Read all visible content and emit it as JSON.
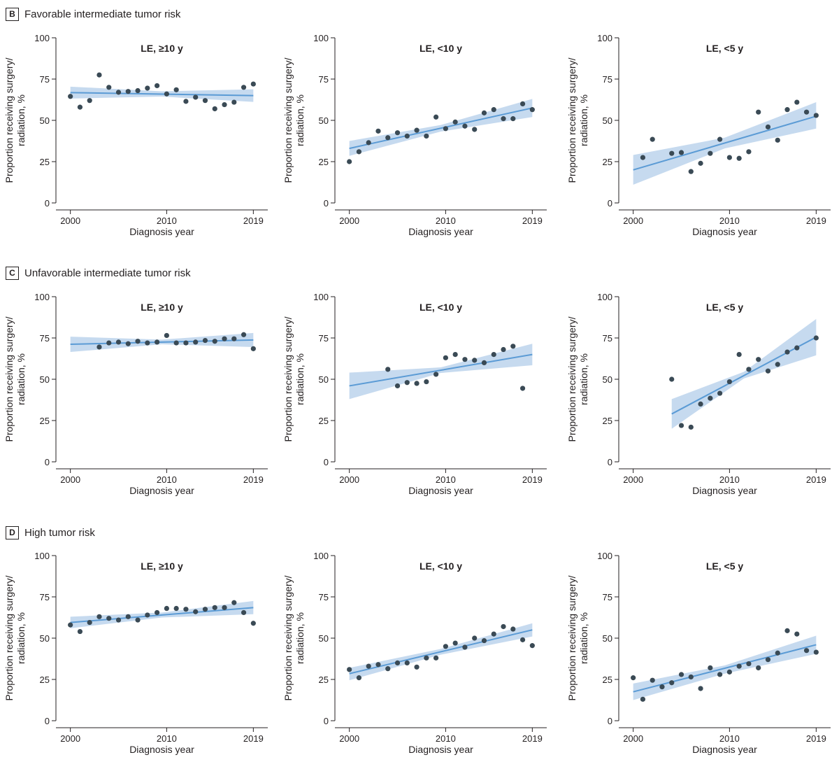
{
  "sections": [
    {
      "letter": "B",
      "title": "Favorable intermediate tumor risk"
    },
    {
      "letter": "C",
      "title": "Unfavorable intermediate tumor risk"
    },
    {
      "letter": "D",
      "title": "High tumor risk"
    }
  ],
  "colors": {
    "line": "#5b9bd5",
    "ci_band": "#bcd4ec",
    "point": "#3a4a55",
    "axis": "#231f20"
  },
  "chart_data": [
    {
      "type": "scatter",
      "section": "B",
      "title": "LE, ≥10 y",
      "xlabel": "Diagnosis year",
      "ylabel": "Proportion receiving surgery/ radiation, %",
      "xlim": [
        1998.5,
        2020.5
      ],
      "ylim": [
        0,
        100
      ],
      "x_ticks": [
        2000,
        2010,
        2019
      ],
      "y_ticks": [
        0,
        25,
        50,
        75,
        100
      ],
      "points": [
        [
          2000,
          64.5
        ],
        [
          2001,
          58
        ],
        [
          2002,
          62
        ],
        [
          2003,
          77.5
        ],
        [
          2004,
          70
        ],
        [
          2005,
          67
        ],
        [
          2006,
          67.5
        ],
        [
          2007,
          68
        ],
        [
          2008,
          69.5
        ],
        [
          2009,
          71
        ],
        [
          2010,
          66
        ],
        [
          2011,
          68.5
        ],
        [
          2012,
          61.5
        ],
        [
          2013,
          64
        ],
        [
          2014,
          62
        ],
        [
          2015,
          57
        ],
        [
          2016,
          59.5
        ],
        [
          2017,
          61
        ],
        [
          2018,
          70
        ],
        [
          2019,
          72
        ]
      ],
      "fit": {
        "x": [
          2000,
          2019
        ],
        "y": [
          66.8,
          65.0
        ]
      },
      "ci": {
        "x": [
          2000,
          2009.5,
          2019
        ],
        "upper": [
          70.4,
          67.6,
          68.8
        ],
        "lower": [
          63.2,
          64.4,
          61.2
        ]
      }
    },
    {
      "type": "scatter",
      "section": "B",
      "title": "LE, <10 y",
      "xlabel": "Diagnosis year",
      "ylabel": "Proportion receiving surgery/ radiation, %",
      "xlim": [
        1998.5,
        2020.5
      ],
      "ylim": [
        0,
        100
      ],
      "x_ticks": [
        2000,
        2010,
        2019
      ],
      "y_ticks": [
        0,
        25,
        50,
        75,
        100
      ],
      "points": [
        [
          2000,
          25
        ],
        [
          2001,
          31
        ],
        [
          2002,
          36.5
        ],
        [
          2003,
          43.5
        ],
        [
          2004,
          39.5
        ],
        [
          2005,
          42.5
        ],
        [
          2006,
          40.5
        ],
        [
          2007,
          44
        ],
        [
          2008,
          40.5
        ],
        [
          2009,
          52
        ],
        [
          2010,
          45
        ],
        [
          2011,
          49
        ],
        [
          2012,
          46.5
        ],
        [
          2013,
          44.5
        ],
        [
          2014,
          54.5
        ],
        [
          2015,
          56.5
        ],
        [
          2016,
          51
        ],
        [
          2017,
          51
        ],
        [
          2018,
          60
        ],
        [
          2019,
          56.5
        ]
      ],
      "fit": {
        "x": [
          2000,
          2019
        ],
        "y": [
          33,
          57.5
        ]
      },
      "ci": {
        "x": [
          2000,
          2009.5,
          2019
        ],
        "upper": [
          37.5,
          47.2,
          63
        ],
        "lower": [
          28.5,
          43.2,
          52
        ]
      }
    },
    {
      "type": "scatter",
      "section": "B",
      "title": "LE, <5 y",
      "xlabel": "Diagnosis year",
      "ylabel": "Proportion receiving surgery/ radiation, %",
      "xlim": [
        1998.5,
        2020.5
      ],
      "ylim": [
        0,
        100
      ],
      "x_ticks": [
        2000,
        2010,
        2019
      ],
      "y_ticks": [
        0,
        25,
        50,
        75,
        100
      ],
      "points": [
        [
          2001,
          27.5
        ],
        [
          2002,
          38.5
        ],
        [
          2004,
          30
        ],
        [
          2005,
          30.5
        ],
        [
          2006,
          19
        ],
        [
          2007,
          24
        ],
        [
          2008,
          30
        ],
        [
          2009,
          38.5
        ],
        [
          2010,
          27.5
        ],
        [
          2011,
          27
        ],
        [
          2012,
          31
        ],
        [
          2013,
          55
        ],
        [
          2014,
          46
        ],
        [
          2015,
          38
        ],
        [
          2016,
          56.5
        ],
        [
          2017,
          61
        ],
        [
          2018,
          55
        ],
        [
          2019,
          53
        ]
      ],
      "fit": {
        "x": [
          2000,
          2019
        ],
        "y": [
          20,
          52.5
        ]
      },
      "ci": {
        "x": [
          2000,
          2009.5,
          2019
        ],
        "upper": [
          29,
          39.5,
          61
        ],
        "lower": [
          11,
          33,
          45
        ]
      }
    },
    {
      "type": "scatter",
      "section": "C",
      "title": "LE, ≥10 y",
      "xlabel": "Diagnosis year",
      "ylabel": "Proportion receiving surgery/ radiation, %",
      "xlim": [
        1998.5,
        2020.5
      ],
      "ylim": [
        0,
        100
      ],
      "x_ticks": [
        2000,
        2010,
        2019
      ],
      "y_ticks": [
        0,
        25,
        50,
        75,
        100
      ],
      "points": [
        [
          2003,
          69.5
        ],
        [
          2004,
          72
        ],
        [
          2005,
          72.5
        ],
        [
          2006,
          71.5
        ],
        [
          2007,
          73
        ],
        [
          2008,
          72
        ],
        [
          2009,
          72.5
        ],
        [
          2010,
          76.5
        ],
        [
          2011,
          72
        ],
        [
          2012,
          72
        ],
        [
          2013,
          72.5
        ],
        [
          2014,
          73.5
        ],
        [
          2015,
          73
        ],
        [
          2016,
          74.5
        ],
        [
          2017,
          74.5
        ],
        [
          2018,
          77
        ],
        [
          2019,
          68.5
        ]
      ],
      "fit": {
        "x": [
          2000,
          2019
        ],
        "y": [
          71.2,
          73.8
        ]
      },
      "ci": {
        "x": [
          2000,
          2009.5,
          2019
        ],
        "upper": [
          75.8,
          74,
          78
        ],
        "lower": [
          66.5,
          71.2,
          69.5
        ]
      }
    },
    {
      "type": "scatter",
      "section": "C",
      "title": "LE, <10 y",
      "xlabel": "Diagnosis year",
      "ylabel": "Proportion receiving surgery/ radiation, %",
      "xlim": [
        1998.5,
        2020.5
      ],
      "ylim": [
        0,
        100
      ],
      "x_ticks": [
        2000,
        2010,
        2019
      ],
      "y_ticks": [
        0,
        25,
        50,
        75,
        100
      ],
      "points": [
        [
          2004,
          56
        ],
        [
          2005,
          46
        ],
        [
          2006,
          48
        ],
        [
          2007,
          47.5
        ],
        [
          2008,
          48.5
        ],
        [
          2009,
          53
        ],
        [
          2010,
          63
        ],
        [
          2011,
          65
        ],
        [
          2012,
          62
        ],
        [
          2013,
          61.5
        ],
        [
          2014,
          60
        ],
        [
          2015,
          65
        ],
        [
          2016,
          68
        ],
        [
          2017,
          70
        ],
        [
          2018,
          44.5
        ]
      ],
      "fit": {
        "x": [
          2000,
          2019
        ],
        "y": [
          46,
          65
        ]
      },
      "ci": {
        "x": [
          2000,
          2009.5,
          2019
        ],
        "upper": [
          54,
          57.2,
          71.5
        ],
        "lower": [
          38,
          53.8,
          58.5
        ]
      }
    },
    {
      "type": "scatter",
      "section": "C",
      "title": "LE, <5 y",
      "xlabel": "Diagnosis year",
      "ylabel": "Proportion receiving surgery/ radiation, %",
      "xlim": [
        1998.5,
        2020.5
      ],
      "ylim": [
        0,
        100
      ],
      "x_ticks": [
        2000,
        2010,
        2019
      ],
      "y_ticks": [
        0,
        25,
        50,
        75,
        100
      ],
      "points": [
        [
          2004,
          50
        ],
        [
          2005,
          22
        ],
        [
          2006,
          21
        ],
        [
          2007,
          35
        ],
        [
          2008,
          38.5
        ],
        [
          2009,
          41.5
        ],
        [
          2010,
          48.5
        ],
        [
          2011,
          65
        ],
        [
          2012,
          56
        ],
        [
          2013,
          62
        ],
        [
          2014,
          55
        ],
        [
          2015,
          59
        ],
        [
          2016,
          66.5
        ],
        [
          2017,
          69
        ],
        [
          2019,
          75
        ]
      ],
      "fit": {
        "x": [
          2004,
          2019
        ],
        "y": [
          29,
          75.5
        ]
      },
      "ci": {
        "x": [
          2004,
          2011.5,
          2019
        ],
        "upper": [
          38,
          54.5,
          86.5
        ],
        "lower": [
          20,
          50.5,
          64.5
        ]
      }
    },
    {
      "type": "scatter",
      "section": "D",
      "title": "LE, ≥10 y",
      "xlabel": "Diagnosis year",
      "ylabel": "Proportion receiving surgery/ radiation, %",
      "xlim": [
        1998.5,
        2020.5
      ],
      "ylim": [
        0,
        100
      ],
      "x_ticks": [
        2000,
        2010,
        2019
      ],
      "y_ticks": [
        0,
        25,
        50,
        75,
        100
      ],
      "points": [
        [
          2000,
          58
        ],
        [
          2001,
          54
        ],
        [
          2002,
          59.5
        ],
        [
          2003,
          63
        ],
        [
          2004,
          62
        ],
        [
          2005,
          61
        ],
        [
          2006,
          63
        ],
        [
          2007,
          61
        ],
        [
          2008,
          64
        ],
        [
          2009,
          65.5
        ],
        [
          2010,
          68
        ],
        [
          2011,
          68
        ],
        [
          2012,
          67.5
        ],
        [
          2013,
          66
        ],
        [
          2014,
          67.5
        ],
        [
          2015,
          68.5
        ],
        [
          2016,
          68.5
        ],
        [
          2017,
          71.5
        ],
        [
          2018,
          65.5
        ],
        [
          2019,
          59
        ]
      ],
      "fit": {
        "x": [
          2000,
          2019
        ],
        "y": [
          59.5,
          68.5
        ]
      },
      "ci": {
        "x": [
          2000,
          2009.5,
          2019
        ],
        "upper": [
          63,
          65.5,
          72.5
        ],
        "lower": [
          56,
          62.5,
          64.5
        ]
      }
    },
    {
      "type": "scatter",
      "section": "D",
      "title": "LE, <10 y",
      "xlabel": "Diagnosis year",
      "ylabel": "Proportion receiving surgery/ radiation, %",
      "xlim": [
        1998.5,
        2020.5
      ],
      "ylim": [
        0,
        100
      ],
      "x_ticks": [
        2000,
        2010,
        2019
      ],
      "y_ticks": [
        0,
        25,
        50,
        75,
        100
      ],
      "points": [
        [
          2000,
          31
        ],
        [
          2001,
          26
        ],
        [
          2002,
          33
        ],
        [
          2003,
          34
        ],
        [
          2004,
          31.5
        ],
        [
          2005,
          35
        ],
        [
          2006,
          35
        ],
        [
          2007,
          32.5
        ],
        [
          2008,
          38
        ],
        [
          2009,
          38
        ],
        [
          2010,
          45
        ],
        [
          2011,
          47
        ],
        [
          2012,
          44.5
        ],
        [
          2013,
          50
        ],
        [
          2014,
          48.5
        ],
        [
          2015,
          52.5
        ],
        [
          2016,
          57
        ],
        [
          2017,
          55.5
        ],
        [
          2018,
          49
        ],
        [
          2019,
          45.5
        ]
      ],
      "fit": {
        "x": [
          2000,
          2019
        ],
        "y": [
          28.5,
          55
        ]
      },
      "ci": {
        "x": [
          2000,
          2009.5,
          2019
        ],
        "upper": [
          32,
          43.5,
          59
        ],
        "lower": [
          24.5,
          40,
          51
        ]
      }
    },
    {
      "type": "scatter",
      "section": "D",
      "title": "LE, <5 y",
      "xlabel": "Diagnosis year",
      "ylabel": "Proportion receiving surgery/ radiation, %",
      "xlim": [
        1998.5,
        2020.5
      ],
      "ylim": [
        0,
        100
      ],
      "x_ticks": [
        2000,
        2010,
        2019
      ],
      "y_ticks": [
        0,
        25,
        50,
        75,
        100
      ],
      "points": [
        [
          2000,
          26
        ],
        [
          2001,
          13
        ],
        [
          2002,
          24.5
        ],
        [
          2003,
          20.5
        ],
        [
          2004,
          23
        ],
        [
          2005,
          28
        ],
        [
          2006,
          26.5
        ],
        [
          2007,
          19.5
        ],
        [
          2008,
          32
        ],
        [
          2009,
          28
        ],
        [
          2010,
          29.5
        ],
        [
          2011,
          33
        ],
        [
          2012,
          34.5
        ],
        [
          2013,
          32
        ],
        [
          2014,
          37
        ],
        [
          2015,
          41
        ],
        [
          2016,
          54.5
        ],
        [
          2017,
          52.5
        ],
        [
          2018,
          42.5
        ],
        [
          2019,
          41.5
        ]
      ],
      "fit": {
        "x": [
          2000,
          2019
        ],
        "y": [
          17.5,
          46
        ]
      },
      "ci": {
        "x": [
          2000,
          2009.5,
          2019
        ],
        "upper": [
          22.5,
          33.5,
          51.5
        ],
        "lower": [
          12.5,
          28.5,
          40.5
        ]
      }
    }
  ]
}
